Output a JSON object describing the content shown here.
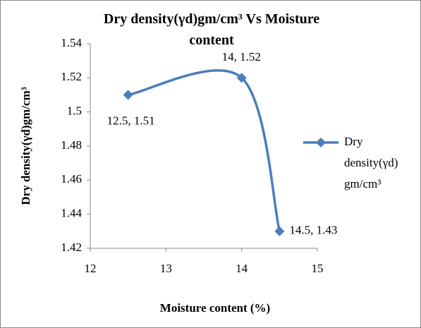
{
  "chart_data": {
    "type": "line",
    "title": "Dry density(γd)gm/cm³ Vs Moisture content",
    "xlabel": "Moisture content (%)",
    "ylabel": "Dry density(γd)gm/cm³",
    "x": [
      12.5,
      14,
      14.5
    ],
    "series": [
      {
        "name": "Dry density(γd) gm/cm³",
        "color": "#4a7ebb",
        "values": [
          1.51,
          1.52,
          1.43
        ],
        "value_labels": [
          "12.5, 1.51",
          "14, 1.52",
          "14.5, 1.43"
        ]
      }
    ],
    "xlim": [
      12,
      15
    ],
    "xticks": [
      12,
      13,
      14,
      15
    ],
    "ylim": [
      1.42,
      1.54
    ],
    "yticks": [
      1.42,
      1.44,
      1.46,
      1.48,
      {
        "value": 1.5,
        "label": "1.5"
      },
      1.52,
      1.54
    ],
    "legend": "right",
    "grid": false,
    "smooth": true
  }
}
